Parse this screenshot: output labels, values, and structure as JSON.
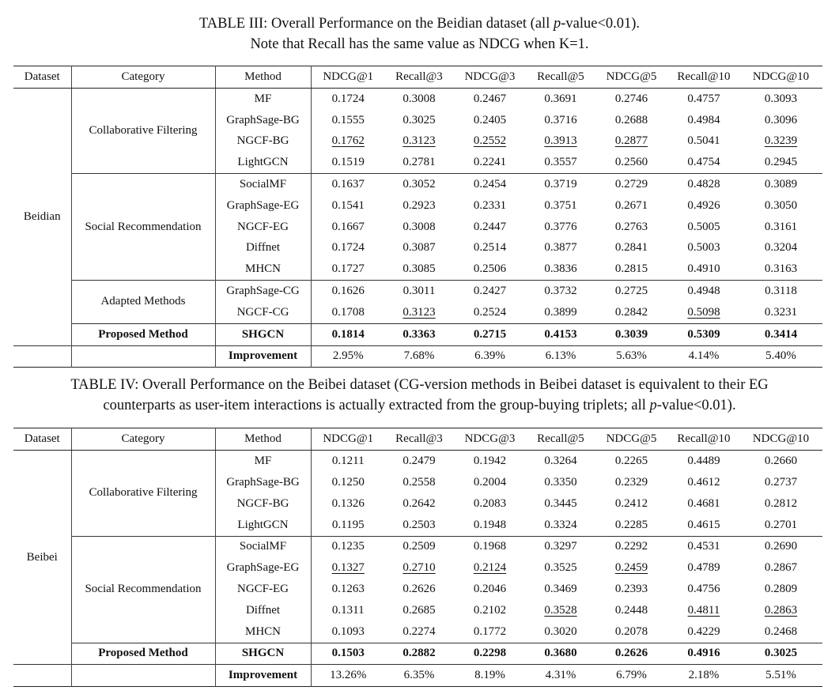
{
  "header_cols": [
    "Dataset",
    "Category",
    "Method",
    "NDCG@1",
    "Recall@3",
    "NDCG@3",
    "Recall@5",
    "NDCG@5",
    "Recall@10",
    "NDCG@10"
  ],
  "tables": [
    {
      "caption_line1_prefix": "TABLE III: Overall Performance on the Beidian dataset (all ",
      "caption_p": "p",
      "caption_line1_suffix": "-value<0.01).",
      "caption_line2": "Note that Recall has the same value as NDCG when K=1.",
      "dataset": "Beidian",
      "groups": [
        {
          "category": "Collaborative Filtering",
          "rows": [
            {
              "method": "MF",
              "values": [
                "0.1724",
                "0.3008",
                "0.2467",
                "0.3691",
                "0.2746",
                "0.4757",
                "0.3093"
              ],
              "underline": []
            },
            {
              "method": "GraphSage-BG",
              "values": [
                "0.1555",
                "0.3025",
                "0.2405",
                "0.3716",
                "0.2688",
                "0.4984",
                "0.3096"
              ],
              "underline": []
            },
            {
              "method": "NGCF-BG",
              "values": [
                "0.1762",
                "0.3123",
                "0.2552",
                "0.3913",
                "0.2877",
                "0.5041",
                "0.3239"
              ],
              "underline": [
                0,
                1,
                2,
                3,
                4,
                6
              ]
            },
            {
              "method": "LightGCN",
              "values": [
                "0.1519",
                "0.2781",
                "0.2241",
                "0.3557",
                "0.2560",
                "0.4754",
                "0.2945"
              ],
              "underline": []
            }
          ]
        },
        {
          "category": "Social Recommendation",
          "rows": [
            {
              "method": "SocialMF",
              "values": [
                "0.1637",
                "0.3052",
                "0.2454",
                "0.3719",
                "0.2729",
                "0.4828",
                "0.3089"
              ],
              "underline": []
            },
            {
              "method": "GraphSage-EG",
              "values": [
                "0.1541",
                "0.2923",
                "0.2331",
                "0.3751",
                "0.2671",
                "0.4926",
                "0.3050"
              ],
              "underline": []
            },
            {
              "method": "NGCF-EG",
              "values": [
                "0.1667",
                "0.3008",
                "0.2447",
                "0.3776",
                "0.2763",
                "0.5005",
                "0.3161"
              ],
              "underline": []
            },
            {
              "method": "Diffnet",
              "values": [
                "0.1724",
                "0.3087",
                "0.2514",
                "0.3877",
                "0.2841",
                "0.5003",
                "0.3204"
              ],
              "underline": []
            },
            {
              "method": "MHCN",
              "values": [
                "0.1727",
                "0.3085",
                "0.2506",
                "0.3836",
                "0.2815",
                "0.4910",
                "0.3163"
              ],
              "underline": []
            }
          ]
        },
        {
          "category": "Adapted Methods",
          "rows": [
            {
              "method": "GraphSage-CG",
              "values": [
                "0.1626",
                "0.3011",
                "0.2427",
                "0.3732",
                "0.2725",
                "0.4948",
                "0.3118"
              ],
              "underline": []
            },
            {
              "method": "NGCF-CG",
              "values": [
                "0.1708",
                "0.3123",
                "0.2524",
                "0.3899",
                "0.2842",
                "0.5098",
                "0.3231"
              ],
              "underline": [
                1,
                5
              ]
            }
          ]
        }
      ],
      "proposed": {
        "category": "Proposed Method",
        "method": "SHGCN",
        "values": [
          "0.1814",
          "0.3363",
          "0.2715",
          "0.4153",
          "0.3039",
          "0.5309",
          "0.3414"
        ]
      },
      "improvement": {
        "label": "Improvement",
        "values": [
          "2.95%",
          "7.68%",
          "6.39%",
          "6.13%",
          "5.63%",
          "4.14%",
          "5.40%"
        ]
      }
    },
    {
      "caption_line1_prefix": "TABLE IV: Overall Performance on the Beibei dataset (CG-version methods in Beibei dataset is equivalent to their EG",
      "caption_line2_prefix": "counterparts as user-item interactions is actually extracted from the group-buying triplets; all ",
      "caption_p": "p",
      "caption_line2_suffix": "-value<0.01).",
      "dataset": "Beibei",
      "groups": [
        {
          "category": "Collaborative Filtering",
          "rows": [
            {
              "method": "MF",
              "values": [
                "0.1211",
                "0.2479",
                "0.1942",
                "0.3264",
                "0.2265",
                "0.4489",
                "0.2660"
              ],
              "underline": []
            },
            {
              "method": "GraphSage-BG",
              "values": [
                "0.1250",
                "0.2558",
                "0.2004",
                "0.3350",
                "0.2329",
                "0.4612",
                "0.2737"
              ],
              "underline": []
            },
            {
              "method": "NGCF-BG",
              "values": [
                "0.1326",
                "0.2642",
                "0.2083",
                "0.3445",
                "0.2412",
                "0.4681",
                "0.2812"
              ],
              "underline": []
            },
            {
              "method": "LightGCN",
              "values": [
                "0.1195",
                "0.2503",
                "0.1948",
                "0.3324",
                "0.2285",
                "0.4615",
                "0.2701"
              ],
              "underline": []
            }
          ]
        },
        {
          "category": "Social Recommendation",
          "rows": [
            {
              "method": "SocialMF",
              "values": [
                "0.1235",
                "0.2509",
                "0.1968",
                "0.3297",
                "0.2292",
                "0.4531",
                "0.2690"
              ],
              "underline": []
            },
            {
              "method": "GraphSage-EG",
              "values": [
                "0.1327",
                "0.2710",
                "0.2124",
                "0.3525",
                "0.2459",
                "0.4789",
                "0.2867"
              ],
              "underline": [
                0,
                1,
                2,
                4
              ]
            },
            {
              "method": "NGCF-EG",
              "values": [
                "0.1263",
                "0.2626",
                "0.2046",
                "0.3469",
                "0.2393",
                "0.4756",
                "0.2809"
              ],
              "underline": []
            },
            {
              "method": "Diffnet",
              "values": [
                "0.1311",
                "0.2685",
                "0.2102",
                "0.3528",
                "0.2448",
                "0.4811",
                "0.2863"
              ],
              "underline": [
                3,
                5,
                6
              ]
            },
            {
              "method": "MHCN",
              "values": [
                "0.1093",
                "0.2274",
                "0.1772",
                "0.3020",
                "0.2078",
                "0.4229",
                "0.2468"
              ],
              "underline": []
            }
          ]
        }
      ],
      "proposed": {
        "category": "Proposed Method",
        "method": "SHGCN",
        "values": [
          "0.1503",
          "0.2882",
          "0.2298",
          "0.3680",
          "0.2626",
          "0.4916",
          "0.3025"
        ]
      },
      "improvement": {
        "label": "Improvement",
        "values": [
          "13.26%",
          "6.35%",
          "8.19%",
          "4.31%",
          "6.79%",
          "2.18%",
          "5.51%"
        ]
      }
    }
  ]
}
